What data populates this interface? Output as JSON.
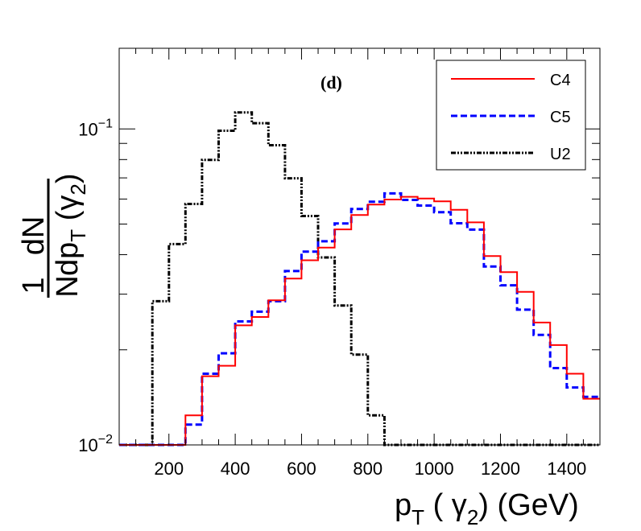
{
  "chart_data": {
    "type": "histogram",
    "panel_label": "(d)",
    "xlabel": {
      "main": "p",
      "sub1": "T",
      "mid": " ( γ",
      "sub2": "2",
      "end": ") (GeV)"
    },
    "ylabel": {
      "frac_num": "1",
      "frac_den": "N",
      "deriv_num": "dN",
      "deriv_den_main": "dp",
      "deriv_den_sub": "T",
      "deriv_den_paren": " (γ",
      "deriv_den_sub2": "2",
      "deriv_den_close": ")"
    },
    "xlim": [
      50,
      1500
    ],
    "ylim": [
      0.01,
      0.18
    ],
    "yscale": "log",
    "x_ticks": [
      200,
      400,
      600,
      800,
      1000,
      1200,
      1400
    ],
    "x_tick_labels": [
      "200",
      "400",
      "600",
      "800",
      "1000",
      "1200",
      "1400"
    ],
    "y_ticks": [
      {
        "value": 0.1,
        "base": "10",
        "exp": "−1"
      },
      {
        "value": 0.01,
        "base": "10",
        "exp": "−2"
      }
    ],
    "bin_edges": [
      50,
      100,
      150,
      200,
      250,
      300,
      350,
      400,
      450,
      500,
      550,
      600,
      650,
      700,
      750,
      800,
      850,
      900,
      950,
      1000,
      1050,
      1100,
      1150,
      1200,
      1250,
      1300,
      1350,
      1400,
      1450,
      1500
    ],
    "series": [
      {
        "name": "C4",
        "color": "#ff0000",
        "style": "solid",
        "values": [
          0.0,
          0.0,
          0.0,
          0.0,
          0.0124,
          0.0165,
          0.0178,
          0.0239,
          0.0254,
          0.0287,
          0.0336,
          0.0384,
          0.0421,
          0.0481,
          0.0534,
          0.0576,
          0.0598,
          0.061,
          0.0602,
          0.059,
          0.0555,
          0.0506,
          0.0396,
          0.0352,
          0.0305,
          0.0244,
          0.0207,
          0.0168,
          0.014
        ]
      },
      {
        "name": "C5",
        "color": "#0000ff",
        "style": "dashed",
        "values": [
          0.0,
          0.0,
          0.0,
          0.0,
          0.0116,
          0.0168,
          0.0195,
          0.0246,
          0.0264,
          0.0285,
          0.0355,
          0.0409,
          0.0441,
          0.0502,
          0.0558,
          0.0588,
          0.0625,
          0.0596,
          0.0572,
          0.0545,
          0.0503,
          0.048,
          0.0367,
          0.032,
          0.0268,
          0.0223,
          0.0175,
          0.0152,
          0.0142
        ]
      },
      {
        "name": "U2",
        "color": "#000000",
        "style": "dashdot",
        "values": [
          0.0,
          0.01,
          0.0285,
          0.0432,
          0.0579,
          0.0798,
          0.0987,
          0.1128,
          0.1043,
          0.0888,
          0.0698,
          0.053,
          0.0392,
          0.0276,
          0.0193,
          0.0124,
          0.01,
          0.0,
          0.0,
          0.0,
          0.0,
          0.0,
          0.0,
          0.0,
          0.0,
          0.0,
          0.0,
          0.0,
          0.0
        ]
      }
    ],
    "legend": {
      "position": "top-right",
      "entries": [
        {
          "label": "C4",
          "color": "#ff0000",
          "style": "solid"
        },
        {
          "label": "C5",
          "color": "#0000ff",
          "style": "dashed"
        },
        {
          "label": "U2",
          "color": "#000000",
          "style": "dashdot"
        }
      ]
    }
  }
}
